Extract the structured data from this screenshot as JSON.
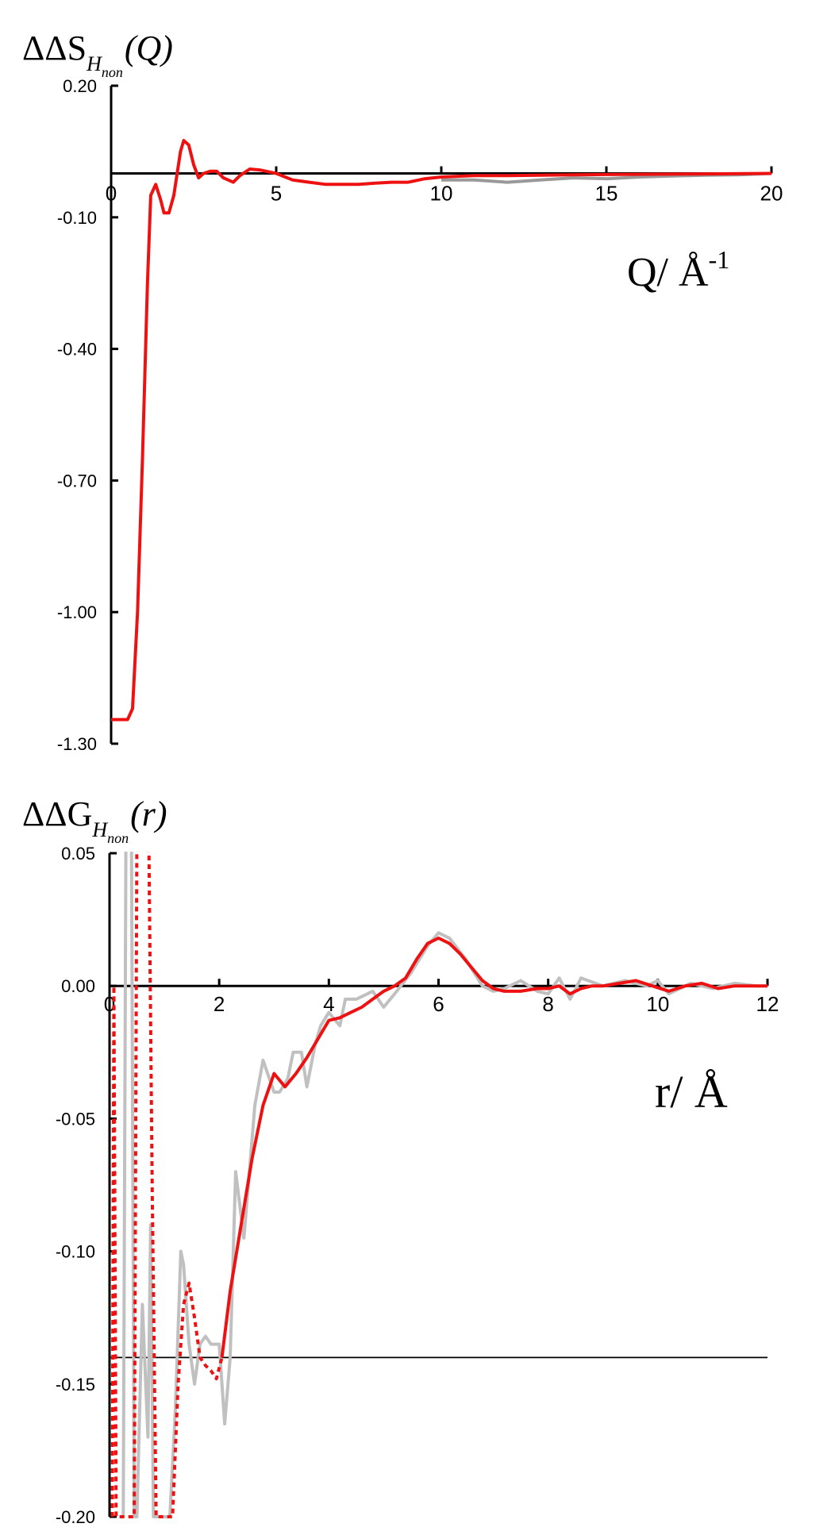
{
  "chart_data": [
    {
      "type": "line",
      "ylabel": {
        "main": "ΔΔS",
        "sub": "H",
        "subsub": "non",
        "arg": "(Q)"
      },
      "xlabel": {
        "main": "Q/ Å",
        "sup": "-1"
      },
      "xlim": [
        0,
        20
      ],
      "ylim": [
        -1.3,
        0.2
      ],
      "xticks": [
        0,
        5,
        10,
        15,
        20
      ],
      "xtick_labels": [
        "0",
        "5",
        "10",
        "15",
        "20"
      ],
      "yticks": [
        0.2,
        -0.1,
        -0.4,
        -0.7,
        -1.0,
        -1.3
      ],
      "ytick_labels": [
        "0.20",
        "-0.10",
        "-0.40",
        "-0.70",
        "-1.00",
        "-1.30"
      ],
      "baseline_y": 0,
      "grid": false,
      "series": [
        {
          "style": "solid-gray",
          "color": "#999999",
          "x": [
            10,
            11,
            12,
            13,
            14,
            15,
            16,
            17,
            18,
            19,
            20
          ],
          "y": [
            -0.015,
            -0.015,
            -0.02,
            -0.015,
            -0.01,
            -0.012,
            -0.008,
            -0.006,
            -0.004,
            -0.003,
            0.0
          ]
        },
        {
          "style": "solid-red",
          "color": "#ee1111",
          "x": [
            0.0,
            0.5,
            0.65,
            0.8,
            0.95,
            1.1,
            1.2,
            1.35,
            1.5,
            1.6,
            1.75,
            1.9,
            2.0,
            2.1,
            2.2,
            2.35,
            2.5,
            2.65,
            2.8,
            3.0,
            3.2,
            3.4,
            3.7,
            3.9,
            4.2,
            4.5,
            5.0,
            5.5,
            6.0,
            6.5,
            7.0,
            7.5,
            8.0,
            8.5,
            9.0,
            9.5,
            10.0,
            11.0,
            12.0,
            14.0,
            16.0,
            18.0,
            20.0
          ],
          "y": [
            -1.245,
            -1.245,
            -1.22,
            -1.0,
            -0.65,
            -0.25,
            -0.05,
            -0.025,
            -0.06,
            -0.09,
            -0.09,
            -0.05,
            0.0,
            0.05,
            0.075,
            0.065,
            0.02,
            -0.01,
            0.0,
            0.005,
            0.005,
            -0.01,
            -0.02,
            -0.005,
            0.01,
            0.008,
            0.0,
            -0.015,
            -0.02,
            -0.025,
            -0.025,
            -0.025,
            -0.022,
            -0.02,
            -0.02,
            -0.012,
            -0.008,
            -0.005,
            -0.005,
            -0.003,
            -0.002,
            -0.001,
            0.0
          ]
        }
      ]
    },
    {
      "type": "line",
      "ylabel": {
        "main": "ΔΔG",
        "sub": "H",
        "subsub": "non",
        "arg": "(r)"
      },
      "xlabel": {
        "main": "r/ Å"
      },
      "xlim": [
        0,
        12
      ],
      "ylim": [
        -0.2,
        0.05
      ],
      "xticks": [
        0,
        2,
        4,
        6,
        8,
        10,
        12
      ],
      "xtick_labels": [
        "0",
        "2",
        "4",
        "6",
        "8",
        "10",
        "12"
      ],
      "yticks": [
        0.05,
        0.0,
        -0.05,
        -0.1,
        -0.15,
        -0.2
      ],
      "ytick_labels": [
        "0.05",
        "0.00",
        "-0.05",
        "-0.10",
        "-0.15",
        "-0.20"
      ],
      "baseline_y": 0,
      "reference_line_y": -0.14,
      "grid": false,
      "series": [
        {
          "style": "solid-gray",
          "color": "#c0c0c0",
          "x": [
            0.25,
            0.3,
            0.4,
            0.45,
            0.5,
            0.6,
            0.7,
            0.75,
            0.8,
            0.9,
            1.0,
            1.1,
            1.2,
            1.3,
            1.35,
            1.45,
            1.55,
            1.65,
            1.75,
            1.85,
            2.0,
            2.1,
            2.2,
            2.3,
            2.45,
            2.55,
            2.65,
            2.8,
            3.0,
            3.1,
            3.25,
            3.35,
            3.5,
            3.6,
            3.75,
            3.85,
            4.0,
            4.2,
            4.3,
            4.5,
            4.8,
            5.0,
            5.2,
            5.5,
            5.8,
            6.0,
            6.2,
            6.5,
            6.8,
            7.0,
            7.2,
            7.5,
            7.8,
            8.0,
            8.2,
            8.4,
            8.6,
            9.0,
            9.4,
            9.8,
            10.0,
            10.2,
            10.6,
            11.0,
            11.4,
            11.8,
            12.0
          ],
          "y": [
            -0.2,
            0.06,
            0.06,
            -0.2,
            -0.2,
            -0.12,
            -0.17,
            -0.09,
            -0.2,
            -0.2,
            -0.2,
            -0.2,
            -0.16,
            -0.1,
            -0.105,
            -0.135,
            -0.15,
            -0.135,
            -0.132,
            -0.135,
            -0.135,
            -0.165,
            -0.14,
            -0.07,
            -0.095,
            -0.07,
            -0.045,
            -0.028,
            -0.04,
            -0.04,
            -0.035,
            -0.025,
            -0.025,
            -0.038,
            -0.022,
            -0.015,
            -0.01,
            -0.015,
            -0.005,
            -0.005,
            -0.002,
            -0.008,
            -0.003,
            0.005,
            0.015,
            0.02,
            0.018,
            0.01,
            0.0,
            -0.002,
            -0.001,
            0.002,
            -0.002,
            -0.003,
            0.003,
            -0.005,
            0.003,
            0.0,
            0.002,
            0.0,
            0.002,
            -0.003,
            0.001,
            -0.001,
            0.001,
            0.0,
            0.0
          ],
          "dash": false
        },
        {
          "style": "dotted-red",
          "color": "#ee1111",
          "x": [
            0.05,
            0.08,
            0.12,
            0.3,
            0.45,
            0.5,
            0.55,
            0.65,
            0.72,
            0.78,
            0.85,
            0.95,
            1.05,
            1.15,
            1.25,
            1.35,
            1.45,
            1.55,
            1.65,
            1.75,
            1.85,
            1.95,
            2.05
          ],
          "y": [
            -0.2,
            0.0,
            -0.2,
            -0.2,
            -0.2,
            0.06,
            0.06,
            0.06,
            0.05,
            -0.08,
            -0.2,
            -0.2,
            -0.2,
            -0.2,
            -0.15,
            -0.12,
            -0.112,
            -0.125,
            -0.14,
            -0.143,
            -0.145,
            -0.148,
            -0.14
          ],
          "dash": true
        },
        {
          "style": "solid-red",
          "color": "#ee1111",
          "x": [
            2.05,
            2.2,
            2.4,
            2.6,
            2.8,
            3.0,
            3.2,
            3.4,
            3.6,
            3.8,
            4.0,
            4.2,
            4.4,
            4.6,
            4.8,
            5.0,
            5.2,
            5.4,
            5.6,
            5.8,
            6.0,
            6.2,
            6.4,
            6.6,
            6.8,
            7.0,
            7.2,
            7.5,
            7.8,
            8.0,
            8.2,
            8.4,
            8.6,
            8.8,
            9.0,
            9.3,
            9.6,
            9.9,
            10.2,
            10.5,
            10.8,
            11.1,
            11.4,
            11.7,
            12.0
          ],
          "y": [
            -0.14,
            -0.115,
            -0.09,
            -0.065,
            -0.045,
            -0.033,
            -0.038,
            -0.033,
            -0.027,
            -0.02,
            -0.013,
            -0.012,
            -0.01,
            -0.008,
            -0.005,
            -0.002,
            0.0,
            0.003,
            0.01,
            0.016,
            0.018,
            0.016,
            0.012,
            0.007,
            0.002,
            -0.001,
            -0.002,
            -0.002,
            -0.001,
            -0.001,
            0.0,
            -0.003,
            -0.001,
            0.0,
            0.0,
            0.001,
            0.002,
            0.0,
            -0.002,
            0.0,
            0.001,
            -0.001,
            0.0,
            0.0,
            0.0
          ],
          "dash": false
        }
      ]
    }
  ]
}
